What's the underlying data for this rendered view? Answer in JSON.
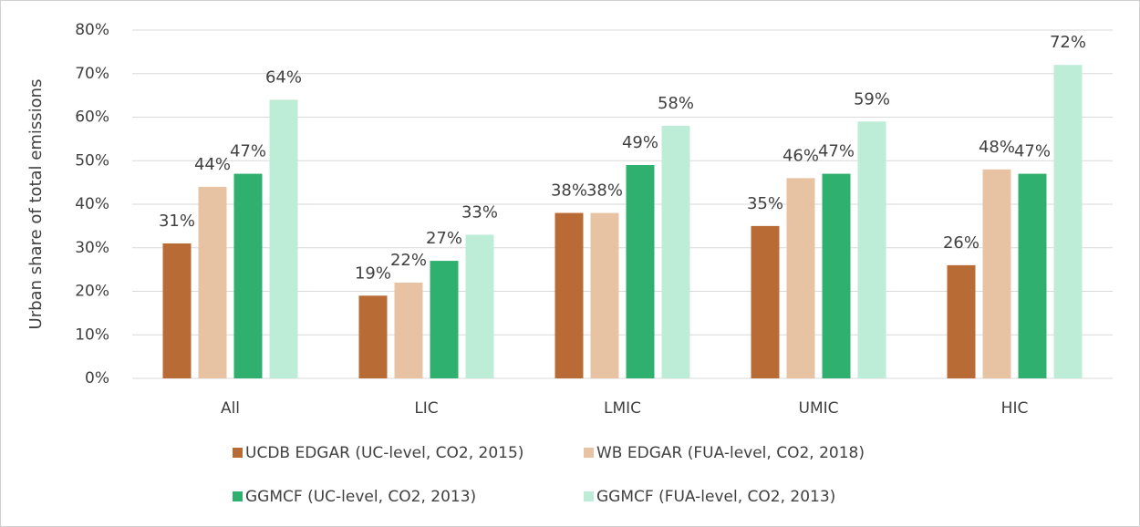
{
  "chart_data": {
    "type": "bar",
    "y_label": "Urban share of total emissions",
    "categories": [
      "All",
      "LIC",
      "LMIC",
      "UMIC",
      "HIC"
    ],
    "series": [
      {
        "name": "UCDB EDGAR (UC-level, CO2, 2015)",
        "color": "#b86b35",
        "values": [
          31,
          19,
          38,
          35,
          26
        ],
        "value_labels": [
          "31%",
          "19%",
          "38%",
          "35%",
          "26%"
        ]
      },
      {
        "name": "WB EDGAR (FUA-level, CO2, 2018)",
        "color": "#e8c3a3",
        "values": [
          44,
          22,
          38,
          46,
          48
        ],
        "value_labels": [
          "44%",
          "22%",
          "38%",
          "46%",
          "48%"
        ]
      },
      {
        "name": "GGMCF (UC-level, CO2, 2013)",
        "color": "#2fb06f",
        "values": [
          47,
          27,
          49,
          47,
          47
        ],
        "value_labels": [
          "47%",
          "27%",
          "49%",
          "47%",
          "47%"
        ]
      },
      {
        "name": "GGMCF (FUA-level, CO2, 2013)",
        "color": "#bdecd7",
        "values": [
          64,
          33,
          58,
          59,
          72
        ],
        "value_labels": [
          "64%",
          "33%",
          "58%",
          "59%",
          "72%"
        ]
      }
    ],
    "ylim": [
      0,
      80
    ],
    "yticks": [
      {
        "value": 0,
        "label": "0%"
      },
      {
        "value": 10,
        "label": "10%"
      },
      {
        "value": 20,
        "label": "20%"
      },
      {
        "value": 30,
        "label": "30%"
      },
      {
        "value": 40,
        "label": "40%"
      },
      {
        "value": 50,
        "label": "50%"
      },
      {
        "value": 60,
        "label": "60%"
      },
      {
        "value": 70,
        "label": "70%"
      },
      {
        "value": 80,
        "label": "80%"
      }
    ],
    "grid": true
  }
}
